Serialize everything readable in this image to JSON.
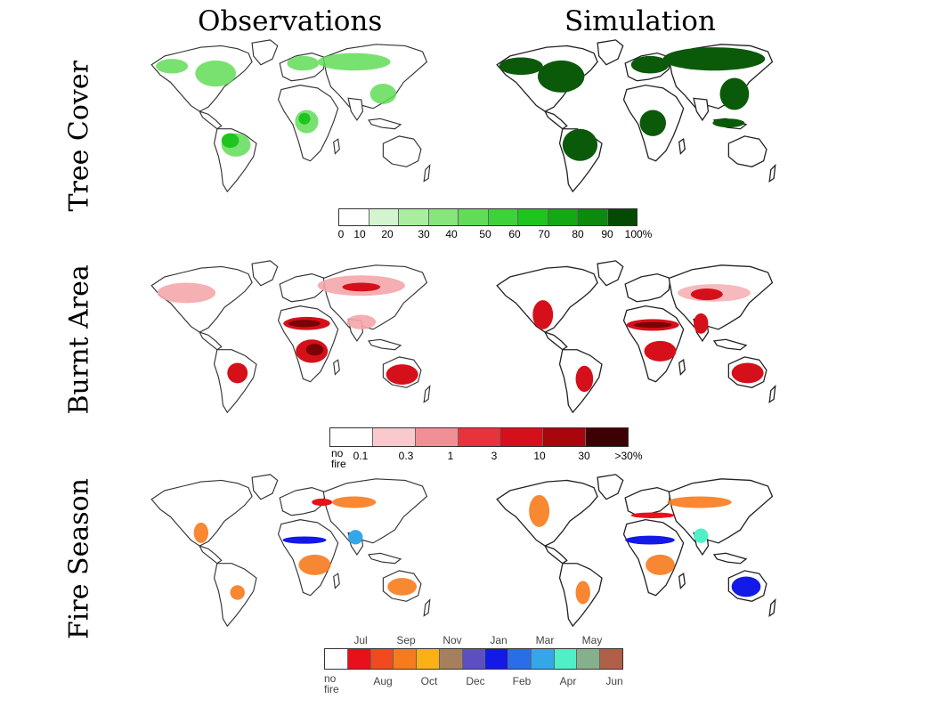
{
  "columns": [
    "Observations",
    "Simulation"
  ],
  "rows": [
    "Tree Cover",
    "Burnt Area",
    "Fire Season"
  ],
  "tree_cover_colorbar": {
    "labels": [
      "0",
      "10",
      "20",
      "30",
      "40",
      "50",
      "60",
      "70",
      "80",
      "90",
      "100%"
    ],
    "colors": [
      "#ffffff",
      "#d2f5d0",
      "#a8ee9e",
      "#86e67b",
      "#62dc58",
      "#3dd13a",
      "#1fc41f",
      "#14a814",
      "#0d8a0d",
      "#096b09",
      "#044a04"
    ]
  },
  "burnt_area_colorbar": {
    "labels": [
      "no fire",
      "0.1",
      "0.3",
      "1",
      "3",
      "10",
      "30",
      ">30%"
    ],
    "colors": [
      "#ffffff",
      "#f9c9cd",
      "#f08f94",
      "#e8333a",
      "#d6101a",
      "#a8050d",
      "#7a0306",
      "#3e0103"
    ]
  },
  "fire_season_colorbar": {
    "top_labels": [
      "Jul",
      "Sep",
      "Nov",
      "Jan",
      "Mar",
      "May"
    ],
    "bottom_labels": [
      "no fire",
      "Aug",
      "Oct",
      "Dec",
      "Feb",
      "Apr",
      "Jun"
    ],
    "colors": [
      "#ffffff",
      "#e8101a",
      "#f04a1e",
      "#f77b1c",
      "#fbb015",
      "#a6805e",
      "#5b4fc2",
      "#1319e6",
      "#2a6de8",
      "#35a7e8",
      "#4ff0c8",
      "#86b08c",
      "#b06048"
    ]
  },
  "palette": {
    "land": "#ffffff",
    "coast": "#333333",
    "ice": "#dcdcdc",
    "tree_obs": "#62dc58",
    "tree_sim": "#0a5a0a",
    "burn_light": "#f4a7ab",
    "burn_mid": "#d6101a",
    "burn_dark": "#7a0306"
  }
}
